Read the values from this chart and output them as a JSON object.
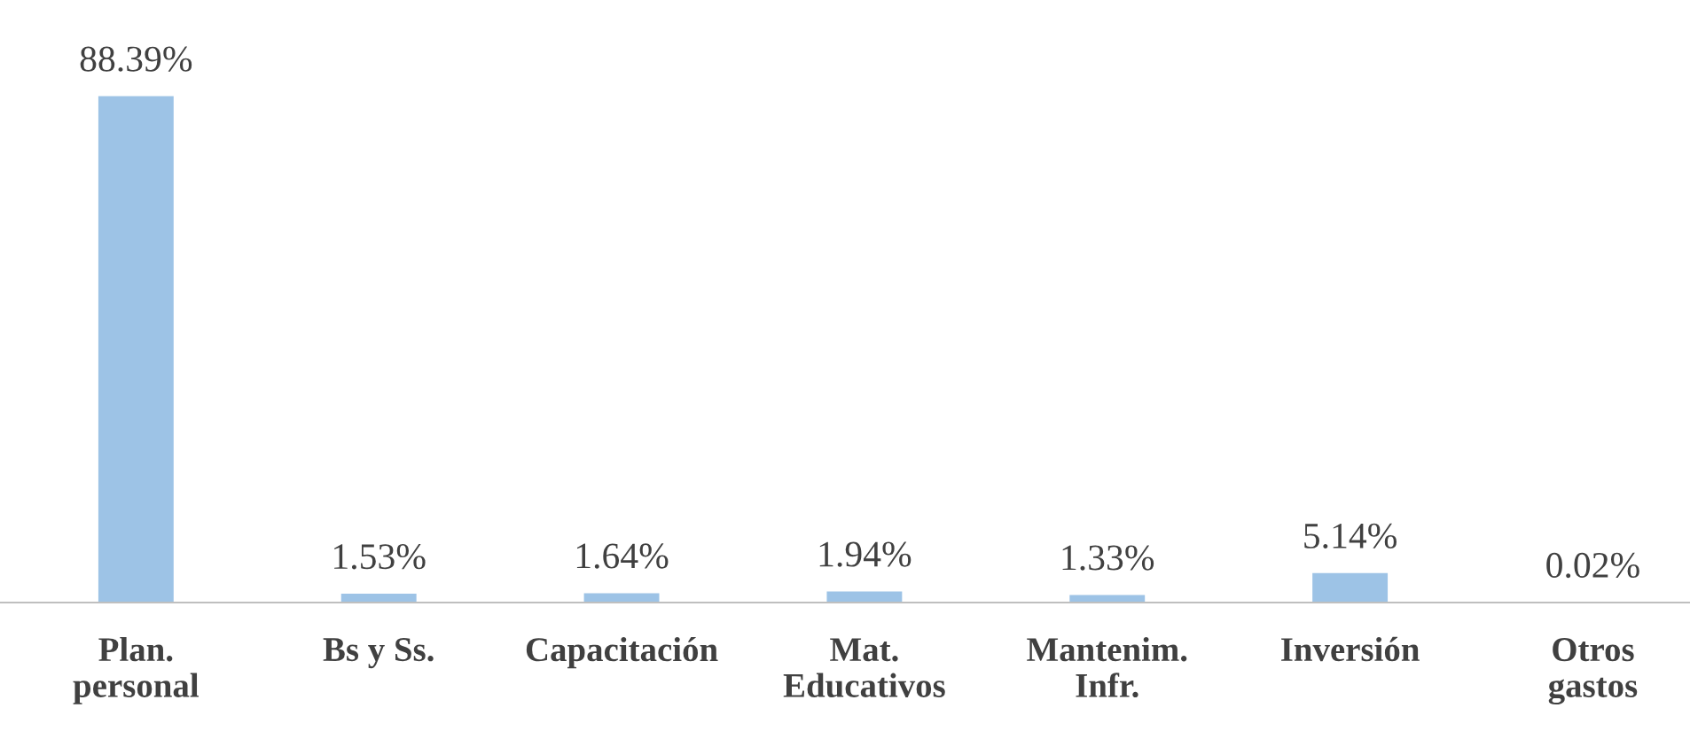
{
  "chart_data": {
    "type": "bar",
    "categories": [
      "Plan.\npersonal",
      "Bs y Ss.",
      "Capacitación",
      "Mat.\nEducativos",
      "Mantenim.\nInfr.",
      "Inversión",
      "Otros\ngastos"
    ],
    "values": [
      88.39,
      1.53,
      1.64,
      1.94,
      1.33,
      5.14,
      0.02
    ],
    "value_labels": [
      "88.39%",
      "1.53%",
      "1.64%",
      "1.94%",
      "1.33%",
      "5.14%",
      "0.02%"
    ],
    "color": "#9dc3e6",
    "grid": false,
    "legend": false
  }
}
